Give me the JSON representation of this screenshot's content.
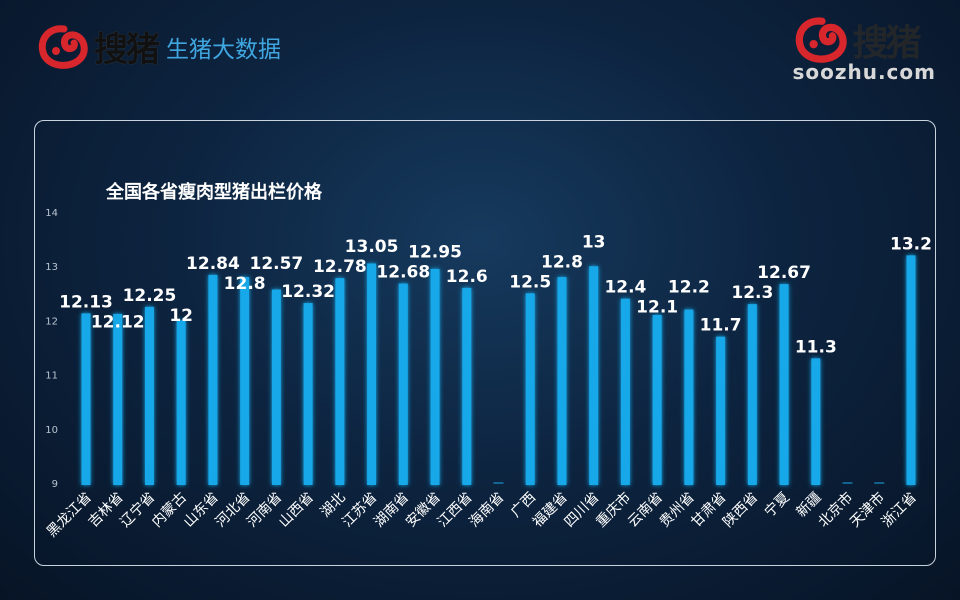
{
  "header": {
    "logo_text": "搜猪",
    "subtitle": "生猪大数据"
  },
  "watermark": {
    "logo_text": "搜猪",
    "url": "soozhu.com"
  },
  "colors": {
    "bar": "#19a8e8",
    "logo_red": "#d7262c",
    "subtitle": "#3fa6e0"
  },
  "chart_data": {
    "type": "bar",
    "title": "全国各省瘦肉型猪出栏价格",
    "xlabel": "",
    "ylabel": "",
    "ylim": [
      9,
      14
    ],
    "yticks": [
      9,
      10,
      11,
      12,
      13,
      14
    ],
    "grid": false,
    "categories": [
      "黑龙江省",
      "吉林省",
      "辽宁省",
      "内蒙古",
      "山东省",
      "河北省",
      "河南省",
      "山西省",
      "湖北",
      "江苏省",
      "湖南省",
      "安徽省",
      "江西省",
      "海南省",
      "广西",
      "福建省",
      "四川省",
      "重庆市",
      "云南省",
      "贵州省",
      "甘肃省",
      "陕西省",
      "宁夏",
      "新疆",
      "北京市",
      "天津市",
      "浙江省"
    ],
    "values": [
      12.13,
      12.12,
      12.25,
      12,
      12.84,
      12.8,
      12.57,
      12.32,
      12.78,
      13.05,
      12.68,
      12.95,
      12.6,
      null,
      12.5,
      12.8,
      13,
      12.4,
      12.1,
      12.2,
      11.7,
      12.3,
      12.67,
      11.3,
      null,
      null,
      13.2
    ],
    "labels": [
      "12.13",
      "12.12",
      "12.25",
      "12",
      "12.84",
      "12.8",
      "12.57",
      "12.32",
      "12.78",
      "13.05",
      "12.68",
      "12.95",
      "12.6",
      "",
      "12.5",
      "12.8",
      "13",
      "12.4",
      "12.1",
      "12.2",
      "11.7",
      "12.3",
      "12.67",
      "11.3",
      "",
      "",
      "13.2"
    ]
  }
}
